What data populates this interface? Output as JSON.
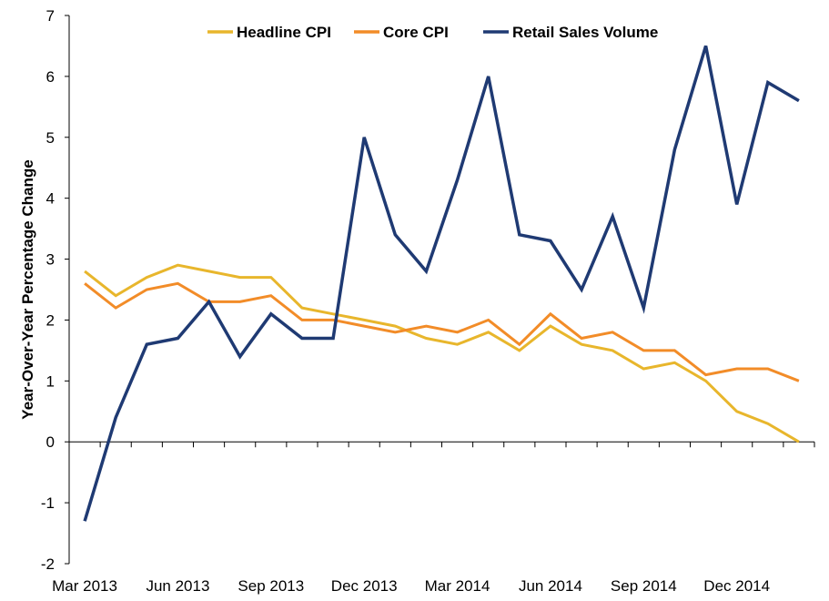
{
  "chart_data": {
    "type": "line",
    "ylabel": "Year-Over-Year Percentage Change",
    "xlabel": "",
    "ylim": [
      -2,
      7
    ],
    "yticks": [
      -2,
      -1,
      0,
      1,
      2,
      3,
      4,
      5,
      6,
      7
    ],
    "x": [
      "Mar 2013",
      "Apr 2013",
      "May 2013",
      "Jun 2013",
      "Jul 2013",
      "Aug 2013",
      "Sep 2013",
      "Oct 2013",
      "Nov 2013",
      "Dec 2013",
      "Jan 2014",
      "Feb 2014",
      "Mar 2014",
      "Apr 2014",
      "May 2014",
      "Jun 2014",
      "Jul 2014",
      "Aug 2014",
      "Sep 2014",
      "Oct 2014",
      "Nov 2014",
      "Dec 2014",
      "Jan 2015",
      "Feb 2015"
    ],
    "xtick_labels": [
      "Mar 2013",
      "Jun 2013",
      "Sep 2013",
      "Dec 2013",
      "Mar 2014",
      "Jun 2014",
      "Sep 2014",
      "Dec 2014"
    ],
    "grid": false,
    "legend_position": "top-center",
    "series": [
      {
        "name": "Headline CPI",
        "color": "#E8B62C",
        "values": [
          2.8,
          2.4,
          2.7,
          2.9,
          2.8,
          2.7,
          2.7,
          2.2,
          2.1,
          2.0,
          1.9,
          1.7,
          1.6,
          1.8,
          1.5,
          1.9,
          1.6,
          1.5,
          1.2,
          1.3,
          1.0,
          0.5,
          0.3,
          0.0
        ]
      },
      {
        "name": "Core CPI",
        "color": "#F28C28",
        "values": [
          2.6,
          2.2,
          2.5,
          2.6,
          2.3,
          2.3,
          2.4,
          2.0,
          2.0,
          1.9,
          1.8,
          1.9,
          1.8,
          2.0,
          1.6,
          2.1,
          1.7,
          1.8,
          1.5,
          1.5,
          1.1,
          1.2,
          1.2,
          1.0
        ]
      },
      {
        "name": "Retail Sales Volume",
        "color": "#1F3A73",
        "values": [
          -1.3,
          0.4,
          1.6,
          1.7,
          2.3,
          1.4,
          2.1,
          1.7,
          1.7,
          5.0,
          3.4,
          2.8,
          4.3,
          6.0,
          3.4,
          3.3,
          2.5,
          3.7,
          2.2,
          4.8,
          6.5,
          3.9,
          5.9,
          5.6
        ]
      }
    ]
  }
}
